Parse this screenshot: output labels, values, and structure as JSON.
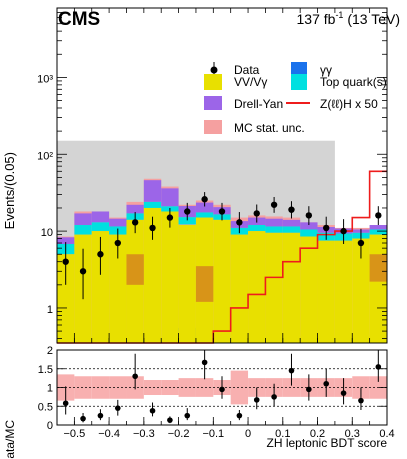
{
  "header": {
    "experiment": "CMS",
    "lumi_prefix": "137 fb",
    "lumi_exp": "-1",
    "lumi_suffix": " (13 TeV)"
  },
  "axes": {
    "ylabel_top": "Events/(0.05)",
    "ylabel_bottom": "Data/MC",
    "xlabel": "ZH leptonic BDT score"
  },
  "legend": {
    "data": "Data",
    "gg": "γγ",
    "vv": "VV/Vγ",
    "top": "Top quark(s)",
    "dy": "Drell-Yan",
    "signal": "Z(ℓℓ)H x 50",
    "mcunc": "MC stat. unc."
  },
  "colors": {
    "vv": "#e8e000",
    "gg": "#1a72ec",
    "top": "#00e0e0",
    "dy": "#9c65e8",
    "mcunc": "#f5a0a0",
    "signal": "#ee1c1c",
    "gray_band": "#d4d4d4",
    "dark_band": "#d89418",
    "ratio_band": "#f8b0b0"
  },
  "chart_data": [
    {
      "type": "bar",
      "stacked": true,
      "ylog": true,
      "xlim": [
        -0.55,
        0.4
      ],
      "ylim": [
        0.35,
        8000
      ],
      "bin_width": 0.05,
      "bin_edges": [
        -0.55,
        -0.5,
        -0.45,
        -0.4,
        -0.35,
        -0.3,
        -0.25,
        -0.2,
        -0.15,
        -0.1,
        -0.05,
        0.0,
        0.05,
        0.1,
        0.15,
        0.2,
        0.25,
        0.3,
        0.35,
        0.4
      ],
      "xticks": [
        -0.5,
        -0.4,
        -0.3,
        -0.2,
        -0.1,
        0,
        0.1,
        0.2,
        0.3,
        0.4
      ],
      "xtick_labels": [
        "−0.5",
        "−0.4",
        "−0.3",
        "−0.2",
        "−0.1",
        "0",
        "0.1",
        "0.2",
        "0.3",
        "0.4"
      ],
      "yticks": [
        1,
        10,
        100,
        1000
      ],
      "ytick_labels": [
        "1",
        "10",
        "10²",
        "10³"
      ],
      "series": [
        {
          "name": "VV/Vγ",
          "key": "vv",
          "values": [
            5,
            9,
            10,
            9,
            14,
            20,
            18,
            12,
            15,
            14,
            9,
            10,
            9.5,
            9.5,
            8.5,
            7.5,
            7.5,
            8,
            9
          ]
        },
        {
          "name": "γγ",
          "key": "gg",
          "values": [
            0,
            0,
            0,
            0,
            0,
            0,
            0,
            0.2,
            0,
            0,
            0,
            0,
            0,
            0,
            0,
            0,
            0,
            0,
            0
          ]
        },
        {
          "name": "Top quark(s)",
          "key": "top",
          "values": [
            1.8,
            3,
            3,
            2.5,
            3,
            4,
            3,
            3,
            2.5,
            2.5,
            2,
            2,
            2,
            2,
            2,
            2,
            1.8,
            1.5,
            1.5
          ]
        },
        {
          "name": "Drell-Yan",
          "key": "dy",
          "values": [
            1.5,
            5,
            5,
            3,
            5,
            22,
            15,
            6,
            6,
            4,
            2.5,
            3,
            3,
            2.5,
            2.5,
            1.8,
            1.5,
            1,
            1.5
          ]
        }
      ],
      "mc_unc_total": [
        8.5,
        18,
        18,
        15,
        24,
        48,
        38,
        22,
        25,
        22,
        15,
        16,
        15.5,
        15,
        13,
        12,
        11,
        11,
        12
      ],
      "signal": {
        "name": "Z(ℓℓ)H x 50",
        "values": [
          0.32,
          0.32,
          0.32,
          0.32,
          0.32,
          0.32,
          0.32,
          0.32,
          0.32,
          0.5,
          1,
          1.5,
          2.5,
          4,
          6,
          9,
          10,
          15,
          60
        ]
      },
      "data": {
        "name": "Data",
        "x": [
          -0.525,
          -0.475,
          -0.425,
          -0.375,
          -0.325,
          -0.275,
          -0.225,
          -0.175,
          -0.125,
          -0.075,
          -0.025,
          0.025,
          0.075,
          0.125,
          0.175,
          0.225,
          0.275,
          0.325,
          0.375
        ],
        "y": [
          4,
          3,
          5,
          7,
          13,
          11,
          15,
          18,
          26,
          18,
          13,
          17,
          22,
          19,
          16,
          11,
          10,
          7,
          16
        ],
        "err_low": [
          2,
          1.7,
          2.3,
          2.6,
          3.6,
          3.3,
          3.9,
          4.2,
          5.1,
          4.2,
          3.6,
          4.1,
          4.7,
          4.4,
          4,
          3.3,
          3.2,
          2.6,
          4
        ],
        "err_high": [
          3.2,
          2.9,
          3.4,
          3.8,
          4.7,
          4.4,
          5,
          5.3,
          6.2,
          5.3,
          4.7,
          5.2,
          5.8,
          5.5,
          5.1,
          4.4,
          4.3,
          3.7,
          5.1
        ]
      }
    },
    {
      "type": "scatter",
      "xlim": [
        -0.55,
        0.4
      ],
      "ylim": [
        0,
        2
      ],
      "yticks": [
        0,
        0.5,
        1,
        1.5,
        2
      ],
      "ytick_labels": [
        "0",
        "0.5",
        "1",
        "1.5",
        "2"
      ],
      "band_halfwidth": [
        0.35,
        0.3,
        0.3,
        0.3,
        0.3,
        0.2,
        0.2,
        0.25,
        0.25,
        0.2,
        0.45,
        0.25,
        0.25,
        0.25,
        0.25,
        0.25,
        0.25,
        0.3,
        0.3
      ],
      "x": [
        -0.525,
        -0.475,
        -0.425,
        -0.375,
        -0.325,
        -0.275,
        -0.225,
        -0.175,
        -0.125,
        -0.075,
        -0.025,
        0.025,
        0.075,
        0.125,
        0.175,
        0.225,
        0.275,
        0.325,
        0.375
      ],
      "y": [
        0.58,
        0.17,
        0.25,
        0.45,
        1.3,
        0.38,
        0.13,
        0.25,
        1.67,
        0.95,
        0.25,
        0.67,
        0.75,
        1.45,
        0.95,
        1.1,
        0.85,
        0.65,
        1.55
      ],
      "err_low": [
        0.3,
        0.1,
        0.12,
        0.2,
        0.35,
        0.15,
        0.08,
        0.12,
        0.45,
        0.25,
        0.12,
        0.25,
        0.25,
        0.4,
        0.3,
        0.35,
        0.3,
        0.25,
        0.4
      ],
      "err_high": [
        0.45,
        0.15,
        0.17,
        0.22,
        0.6,
        0.22,
        0.1,
        0.2,
        0.5,
        0.35,
        0.15,
        0.33,
        0.35,
        0.45,
        0.4,
        0.4,
        0.4,
        0.35,
        0.45
      ]
    }
  ]
}
